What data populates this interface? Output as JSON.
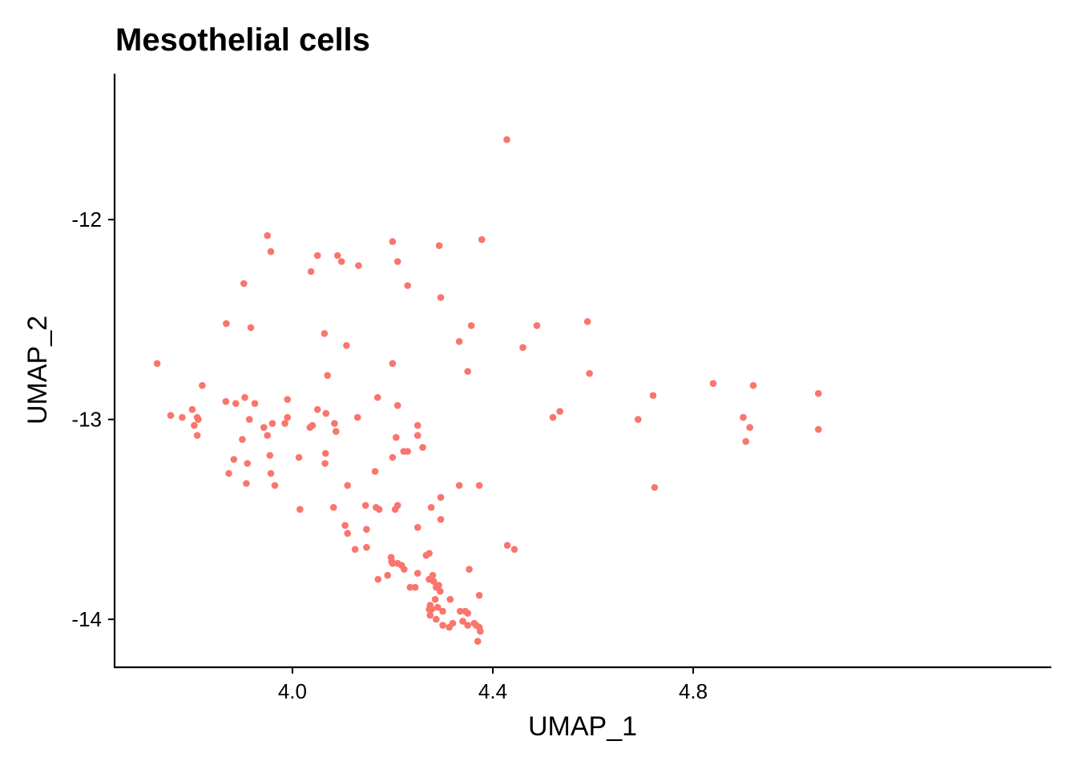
{
  "chart_data": {
    "type": "scatter",
    "title": "Mesothelial cells",
    "xlabel": "UMAP_1",
    "ylabel": "UMAP_2",
    "xlim": [
      3.645,
      5.515
    ],
    "ylim": [
      -14.24,
      -11.27
    ],
    "xticks": [
      {
        "value": 4.0,
        "label": "4.0"
      },
      {
        "value": 4.4,
        "label": "4.4"
      },
      {
        "value": 4.8,
        "label": "4.8"
      }
    ],
    "yticks": [
      {
        "value": -12,
        "label": "-12"
      },
      {
        "value": -13,
        "label": "-13"
      },
      {
        "value": -14,
        "label": "-14"
      }
    ],
    "grid": false,
    "legend": "none",
    "point_color": "#F8766D",
    "series": [
      {
        "x": [
          4.428,
          3.95,
          4.2,
          4.293,
          4.378,
          3.957,
          4.05,
          4.09,
          4.098,
          4.21,
          4.132,
          4.037,
          3.903,
          4.23,
          4.296,
          3.868,
          4.064,
          4.108,
          3.917,
          4.357,
          4.488,
          4.589,
          4.333,
          4.46,
          4.35,
          4.593,
          4.07,
          4.2,
          3.73,
          3.82,
          4.84,
          4.92,
          5.05,
          3.905,
          4.17,
          4.72,
          3.99,
          3.867,
          3.887,
          3.925,
          4.21,
          3.8,
          4.05,
          4.067,
          4.534,
          3.78,
          3.757,
          3.81,
          3.812,
          3.804,
          4.13,
          4.52,
          4.69,
          3.914,
          4.084,
          4.04,
          4.035,
          3.96,
          3.985,
          3.99,
          3.943,
          4.25,
          4.9,
          4.087,
          3.95,
          4.913,
          5.05,
          3.81,
          3.9,
          4.207,
          4.25,
          4.905,
          4.222,
          4.23,
          4.26,
          4.066,
          3.955,
          4.013,
          3.883,
          4.065,
          4.2,
          3.91,
          4.165,
          3.873,
          3.957,
          3.908,
          3.965,
          4.11,
          4.333,
          4.373,
          4.723,
          4.296,
          4.015,
          4.082,
          4.146,
          4.167,
          4.21,
          4.205,
          4.173,
          4.277,
          4.296,
          4.105,
          4.25,
          4.148,
          4.11,
          4.443,
          4.125,
          4.148,
          4.429,
          4.273,
          4.267,
          4.197,
          4.198,
          4.21,
          4.218,
          4.2,
          4.223,
          4.353,
          4.25,
          4.28,
          4.273,
          4.171,
          4.19,
          4.282,
          4.292,
          4.287,
          4.295,
          4.245,
          4.235,
          4.373,
          4.285,
          4.315,
          4.275,
          4.29,
          4.273,
          4.278,
          4.3,
          4.335,
          4.35,
          4.345,
          4.275,
          4.287,
          4.34,
          4.363,
          4.367,
          4.32,
          4.3,
          4.313,
          4.35,
          4.373,
          4.375,
          4.37
        ]
      },
      {
        "y": [
          -11.6,
          -12.08,
          -12.11,
          -12.13,
          -12.1,
          -12.16,
          -12.18,
          -12.18,
          -12.21,
          -12.21,
          -12.23,
          -12.26,
          -12.32,
          -12.33,
          -12.39,
          -12.52,
          -12.57,
          -12.63,
          -12.54,
          -12.53,
          -12.53,
          -12.51,
          -12.61,
          -12.64,
          -12.76,
          -12.77,
          -12.78,
          -12.72,
          -12.72,
          -12.83,
          -12.82,
          -12.83,
          -12.87,
          -12.89,
          -12.89,
          -12.88,
          -12.9,
          -12.91,
          -12.92,
          -12.92,
          -12.93,
          -12.95,
          -12.95,
          -12.97,
          -12.96,
          -12.99,
          -12.98,
          -12.99,
          -13.0,
          -13.03,
          -12.99,
          -12.99,
          -13.0,
          -13.0,
          -13.02,
          -13.03,
          -13.04,
          -13.02,
          -13.02,
          -12.99,
          -13.04,
          -13.03,
          -12.99,
          -13.06,
          -13.08,
          -13.04,
          -13.05,
          -13.08,
          -13.1,
          -13.09,
          -13.08,
          -13.11,
          -13.16,
          -13.16,
          -13.14,
          -13.17,
          -13.18,
          -13.19,
          -13.2,
          -13.22,
          -13.19,
          -13.22,
          -13.26,
          -13.27,
          -13.27,
          -13.32,
          -13.33,
          -13.33,
          -13.33,
          -13.33,
          -13.34,
          -13.39,
          -13.45,
          -13.44,
          -13.43,
          -13.44,
          -13.43,
          -13.45,
          -13.45,
          -13.44,
          -13.5,
          -13.53,
          -13.54,
          -13.55,
          -13.57,
          -13.65,
          -13.65,
          -13.64,
          -13.63,
          -13.67,
          -13.68,
          -13.69,
          -13.71,
          -13.72,
          -13.73,
          -13.72,
          -13.75,
          -13.75,
          -13.77,
          -13.78,
          -13.8,
          -13.8,
          -13.78,
          -13.81,
          -13.83,
          -13.84,
          -13.86,
          -13.84,
          -13.84,
          -13.88,
          -13.9,
          -13.9,
          -13.93,
          -13.94,
          -13.95,
          -13.95,
          -13.96,
          -13.96,
          -13.97,
          -13.96,
          -13.98,
          -14.0,
          -14.01,
          -14.02,
          -14.03,
          -14.02,
          -14.03,
          -14.04,
          -14.03,
          -14.04,
          -14.06,
          -14.11
        ]
      }
    ]
  }
}
